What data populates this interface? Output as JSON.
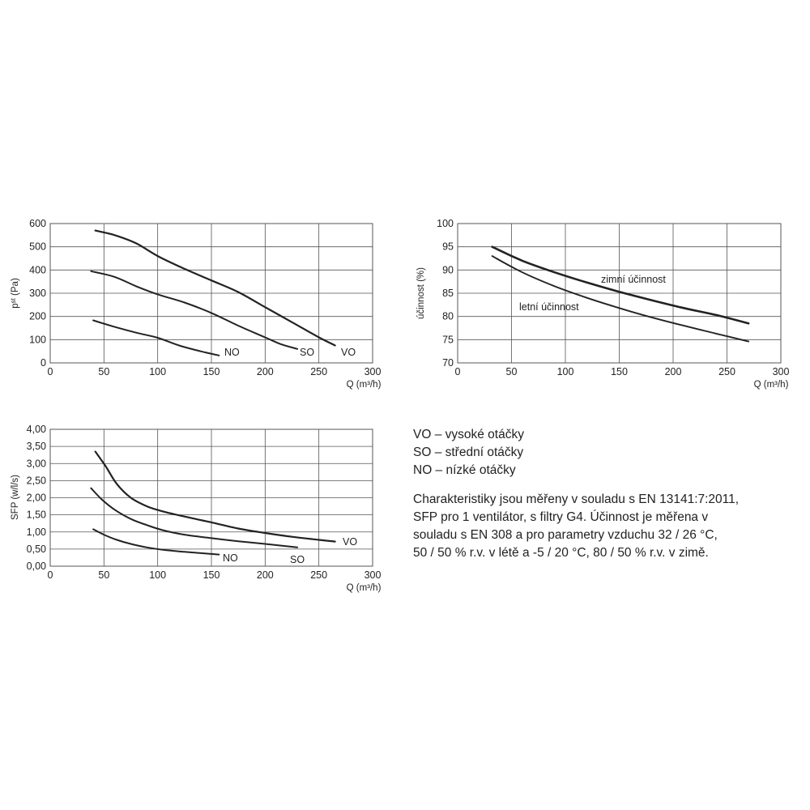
{
  "colors": {
    "ink": "#222222",
    "grid": "#555555"
  },
  "chart_data": [
    {
      "type": "line",
      "ylabel": "p",
      "ylabel_sub": "st",
      "ylabel_rest": " (Pa)",
      "xlabel": "Q (m³/h)",
      "xlim": [
        0,
        300
      ],
      "ylim": [
        0,
        600
      ],
      "xticks": [
        0,
        50,
        100,
        150,
        200,
        250,
        300
      ],
      "yticks": [
        0,
        100,
        200,
        300,
        400,
        500,
        600
      ],
      "ytick_labels": [
        "0",
        "100",
        "200",
        "300",
        "400",
        "500",
        "600"
      ],
      "grid": true,
      "series": [
        {
          "name": "VO",
          "points": [
            [
              42,
              570
            ],
            [
              60,
              550
            ],
            [
              80,
              515
            ],
            [
              100,
              460
            ],
            [
              125,
              405
            ],
            [
              150,
              355
            ],
            [
              175,
              305
            ],
            [
              200,
              240
            ],
            [
              225,
              175
            ],
            [
              250,
              110
            ],
            [
              265,
              75
            ]
          ]
        },
        {
          "name": "SO",
          "points": [
            [
              38,
              395
            ],
            [
              60,
              370
            ],
            [
              80,
              330
            ],
            [
              100,
              295
            ],
            [
              125,
              260
            ],
            [
              150,
              215
            ],
            [
              175,
              160
            ],
            [
              200,
              110
            ],
            [
              215,
              80
            ],
            [
              230,
              60
            ]
          ]
        },
        {
          "name": "NO",
          "points": [
            [
              40,
              183
            ],
            [
              60,
              155
            ],
            [
              80,
              130
            ],
            [
              100,
              108
            ],
            [
              120,
              75
            ],
            [
              140,
              50
            ],
            [
              157,
              32
            ]
          ]
        }
      ]
    },
    {
      "type": "line",
      "ylabel": "účinnost (%)",
      "xlabel": "Q (m³/h)",
      "xlim": [
        0,
        300
      ],
      "ylim": [
        70,
        100
      ],
      "xticks": [
        0,
        50,
        100,
        150,
        200,
        250,
        300
      ],
      "yticks": [
        70,
        75,
        80,
        85,
        90,
        95,
        100
      ],
      "ytick_labels": [
        "70",
        "75",
        "80",
        "85",
        "90",
        "95",
        "100"
      ],
      "grid": true,
      "series": [
        {
          "name": "zimní účinnost",
          "points": [
            [
              32,
              95
            ],
            [
              60,
              92
            ],
            [
              90,
              89.5
            ],
            [
              120,
              87.3
            ],
            [
              150,
              85.3
            ],
            [
              180,
              83.5
            ],
            [
              210,
              81.8
            ],
            [
              240,
              80.3
            ],
            [
              270,
              78.5
            ]
          ]
        },
        {
          "name": "letní účinnost",
          "points": [
            [
              32,
              93
            ],
            [
              60,
              89.5
            ],
            [
              90,
              86.5
            ],
            [
              120,
              84
            ],
            [
              150,
              81.8
            ],
            [
              180,
              79.8
            ],
            [
              210,
              78
            ],
            [
              240,
              76.3
            ],
            [
              270,
              74.6
            ]
          ]
        }
      ]
    },
    {
      "type": "line",
      "ylabel": "SFP (w/l/s)",
      "xlabel": "Q (m³/h)",
      "xlim": [
        0,
        300
      ],
      "ylim": [
        0,
        4
      ],
      "xticks": [
        0,
        50,
        100,
        150,
        200,
        250,
        300
      ],
      "yticks": [
        0,
        0.5,
        1,
        1.5,
        2,
        2.5,
        3,
        3.5,
        4
      ],
      "ytick_labels": [
        "0,00",
        "0,50",
        "1,00",
        "1,50",
        "2,00",
        "2,50",
        "3,00",
        "3,50",
        "4,00"
      ],
      "grid": true,
      "series": [
        {
          "name": "VO",
          "points": [
            [
              42,
              3.35
            ],
            [
              52,
              2.9
            ],
            [
              62,
              2.4
            ],
            [
              75,
              2.0
            ],
            [
              90,
              1.75
            ],
            [
              105,
              1.6
            ],
            [
              125,
              1.45
            ],
            [
              150,
              1.28
            ],
            [
              175,
              1.1
            ],
            [
              200,
              0.97
            ],
            [
              225,
              0.86
            ],
            [
              250,
              0.77
            ],
            [
              265,
              0.72
            ]
          ]
        },
        {
          "name": "SO",
          "points": [
            [
              38,
              2.28
            ],
            [
              48,
              1.95
            ],
            [
              60,
              1.65
            ],
            [
              75,
              1.38
            ],
            [
              90,
              1.2
            ],
            [
              105,
              1.05
            ],
            [
              125,
              0.92
            ],
            [
              150,
              0.82
            ],
            [
              175,
              0.73
            ],
            [
              200,
              0.65
            ],
            [
              230,
              0.55
            ]
          ]
        },
        {
          "name": "NO",
          "points": [
            [
              40,
              1.08
            ],
            [
              50,
              0.92
            ],
            [
              62,
              0.77
            ],
            [
              75,
              0.65
            ],
            [
              90,
              0.55
            ],
            [
              105,
              0.48
            ],
            [
              125,
              0.42
            ],
            [
              145,
              0.37
            ],
            [
              157,
              0.34
            ]
          ]
        }
      ]
    }
  ],
  "legend": {
    "vo": "VO – vysoké otáčky",
    "so": "SO – střední otáčky",
    "no": "NO – nízké otáčky"
  },
  "note_lines": [
    "Charakteristiky jsou měřeny v souladu s EN 13141:7:2011,",
    "SFP pro 1 ventilátor, s filtry G4. Účinnost je měřena v",
    "souladu s EN 308 a pro parametry vzduchu 32 / 26 °C,",
    "50 / 50 % r.v. v létě a -5 / 20 °C, 80 / 50 % r.v. v zimě."
  ]
}
